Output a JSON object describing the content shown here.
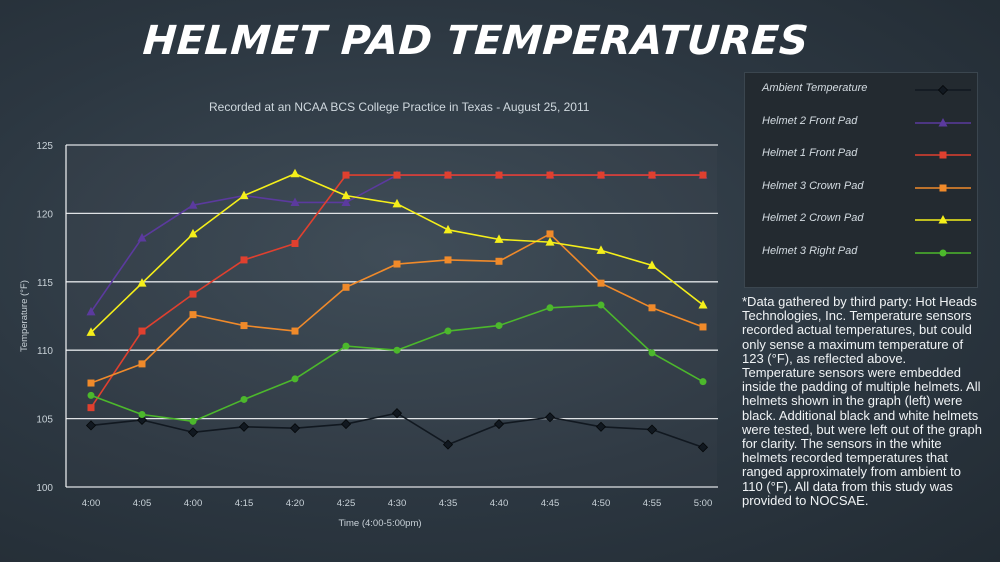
{
  "title": "HELMET PAD TEMPERATURES",
  "subtitle": "Recorded at an NCAA BCS College Practice in Texas - August 25, 2011",
  "note": "*Data gathered by third party: Hot Heads Technologies, Inc. Temperature sensors recorded actual temperatures, but could only sense a maximum temperature of 123 (°F), as reflected above. Temperature sensors were embedded inside the padding of multiple helmets. All helmets shown in the graph (left) were black. Additional black and white helmets were tested, but were left out of the graph for clarity. The sensors in the white helmets recorded temperatures that ranged approximately from ambient to 110 (°F). All data from this study was provided to NOCSAE.",
  "chart_data": {
    "type": "line",
    "title": "HELMET PAD TEMPERATURES",
    "subtitle": "Recorded at an NCAA BCS College Practice in Texas - August 25, 2011",
    "xlabel": "Time (4:00-5:00pm)",
    "ylabel": "Temperature (°F)",
    "categories": [
      "4:00",
      "4:05",
      "4:00",
      "4:15",
      "4:20",
      "4:25",
      "4:30",
      "4:35",
      "4:40",
      "4:45",
      "4:50",
      "4:55",
      "5:00"
    ],
    "ylim": [
      100,
      125
    ],
    "yticks": [
      100,
      105,
      110,
      115,
      120,
      125
    ],
    "grid": true,
    "legend_position": "right",
    "series": [
      {
        "name": "Ambient Temperature",
        "color": "#111820",
        "marker": "diamond",
        "values": [
          104.5,
          104.9,
          104.0,
          104.4,
          104.3,
          104.6,
          105.4,
          103.1,
          104.6,
          105.1,
          104.4,
          104.2,
          102.9
        ]
      },
      {
        "name": "Helmet 2 Front Pad",
        "color": "#5b3a9e",
        "marker": "triangle",
        "values": [
          112.8,
          118.2,
          120.6,
          121.3,
          120.8,
          120.8,
          122.8,
          122.8,
          122.8,
          122.8,
          122.8,
          122.8,
          122.8
        ]
      },
      {
        "name": "Helmet 1 Front Pad",
        "color": "#e0402f",
        "marker": "square",
        "values": [
          105.8,
          111.4,
          114.1,
          116.6,
          117.8,
          122.8,
          122.8,
          122.8,
          122.8,
          122.8,
          122.8,
          122.8,
          122.8
        ]
      },
      {
        "name": "Helmet 3 Crown Pad",
        "color": "#f08a2a",
        "marker": "square",
        "values": [
          107.6,
          109.0,
          112.6,
          111.8,
          111.4,
          114.6,
          116.3,
          116.6,
          116.5,
          118.5,
          114.9,
          113.1,
          111.7
        ]
      },
      {
        "name": "Helmet 2 Crown Pad",
        "color": "#f5ef1a",
        "marker": "triangle",
        "values": [
          111.3,
          114.9,
          118.5,
          121.3,
          122.9,
          121.3,
          120.7,
          118.8,
          118.1,
          117.9,
          117.3,
          116.2,
          113.3
        ]
      },
      {
        "name": "Helmet 3 Right Pad",
        "color": "#4cb82c",
        "marker": "circle",
        "values": [
          106.7,
          105.3,
          104.8,
          106.4,
          107.9,
          110.3,
          110.0,
          111.4,
          111.8,
          113.1,
          113.3,
          109.8,
          107.7
        ]
      }
    ]
  }
}
